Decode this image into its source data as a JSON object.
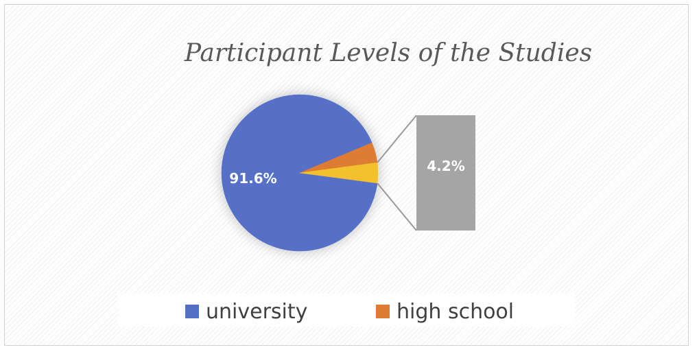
{
  "chart_data": {
    "type": "pie",
    "title": "Participant Levels of the Studies",
    "slices": [
      {
        "label": "university",
        "value": 91.6,
        "color": "#5470c6",
        "data_label": "91.6%"
      },
      {
        "label": "high school",
        "value": 4.2,
        "color": "#dd7c31",
        "data_label": ""
      },
      {
        "label": "",
        "value": 4.2,
        "color": "#f2c12e",
        "data_label": "4.2%"
      }
    ],
    "secondary_bar": {
      "value": 4.2,
      "label": "4.2%",
      "color": "#a5a5a5"
    },
    "legend": {
      "position": "bottom",
      "entries": [
        {
          "label": "university",
          "color": "#5470c6"
        },
        {
          "label": "high school",
          "color": "#dd7c31"
        }
      ]
    }
  }
}
